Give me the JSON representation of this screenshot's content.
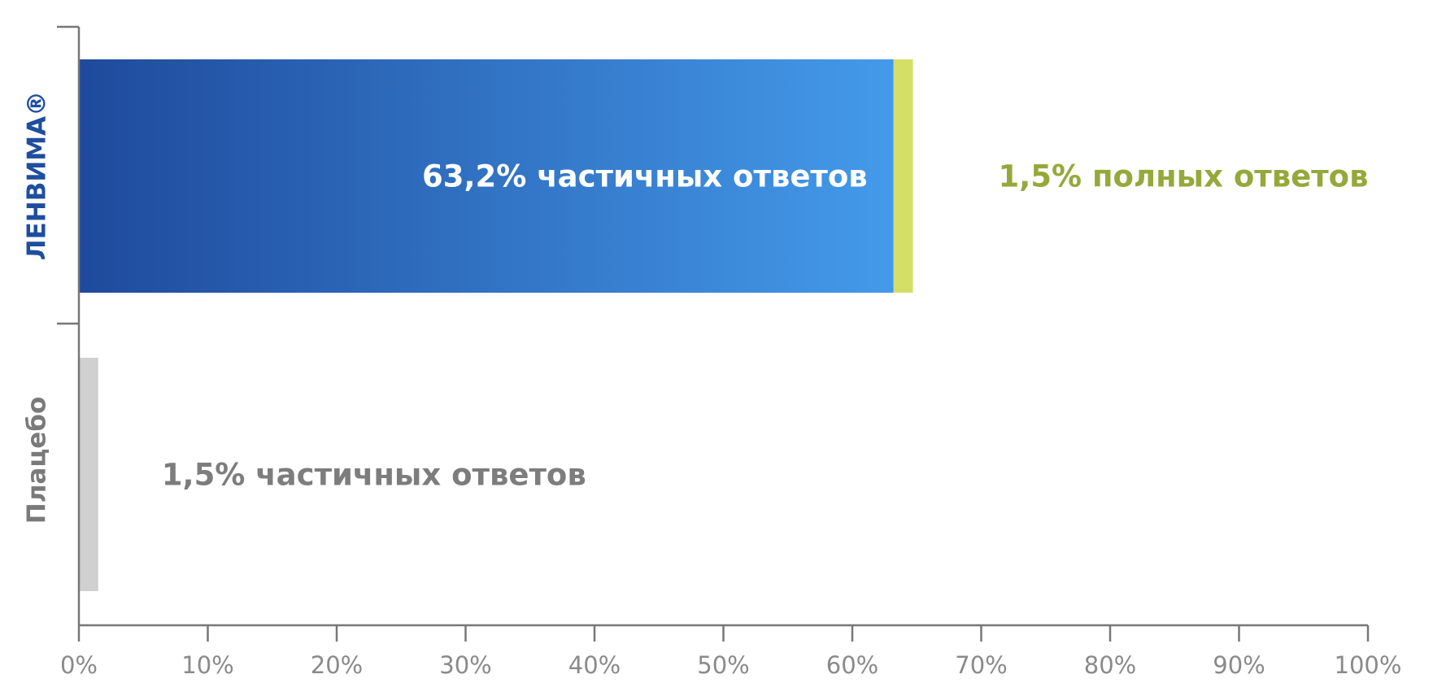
{
  "chart_data": {
    "type": "bar",
    "orientation": "horizontal",
    "stacked": true,
    "title": "",
    "xlabel": "",
    "ylabel": "",
    "xlim": [
      0,
      100
    ],
    "x_ticks": [
      "0%",
      "10%",
      "20%",
      "30%",
      "40%",
      "50%",
      "60%",
      "70%",
      "80%",
      "90%",
      "100%"
    ],
    "grid": false,
    "categories": [
      {
        "label": "ЛЕНВИМА®",
        "color": "#1f4e9e"
      },
      {
        "label": "Плацебо",
        "color": "#7a7a7a"
      }
    ],
    "bars": [
      {
        "category": "ЛЕНВИМА®",
        "segments": [
          {
            "value": 63.2,
            "color_start": "#1f4a9c",
            "color_end": "#449aea",
            "label": "63,2% частичных ответов",
            "label_color": "#ffffff",
            "label_position": "inside-end"
          },
          {
            "value": 1.5,
            "color": "#d4df68",
            "label": "1,5% полных ответов",
            "label_color": "#95a93a",
            "label_position": "outside"
          }
        ]
      },
      {
        "category": "Плацебо",
        "segments": [
          {
            "value": 1.5,
            "color": "#d0d0d0",
            "label": "1,5% частичных ответов",
            "label_color": "#7d7d7d",
            "label_position": "outside"
          }
        ]
      }
    ]
  }
}
